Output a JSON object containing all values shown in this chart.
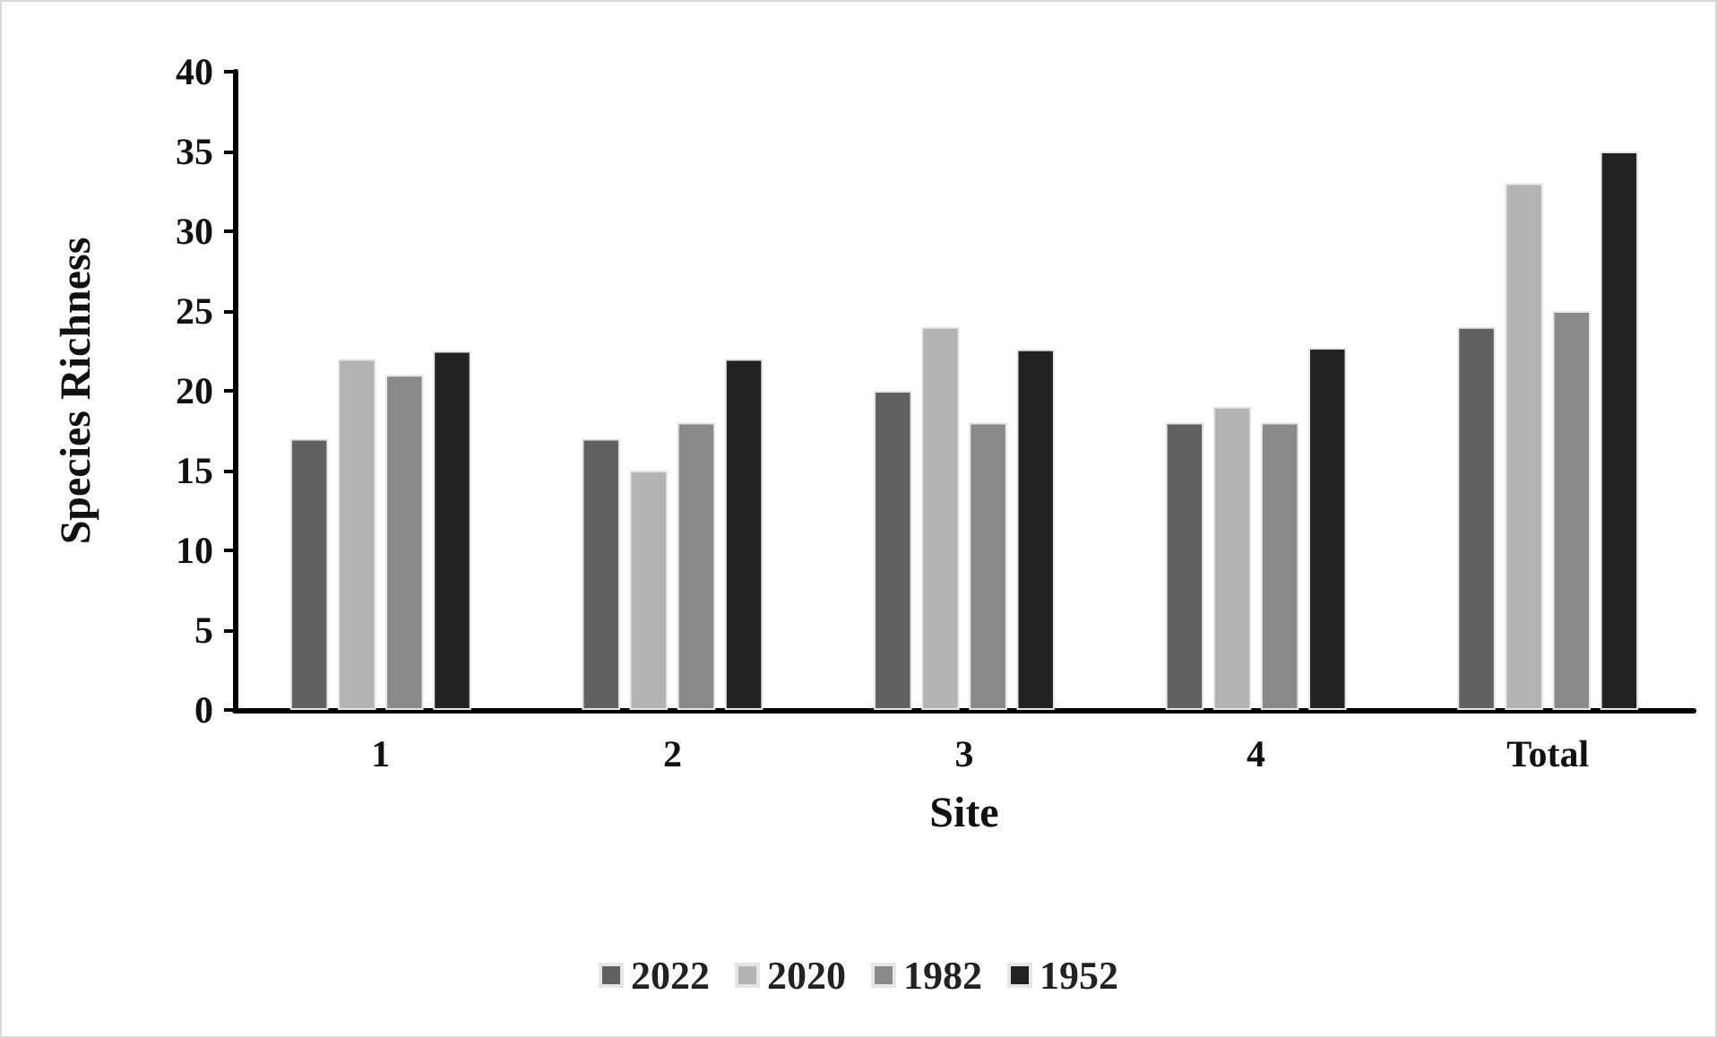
{
  "chart_data": {
    "type": "bar",
    "xlabel": "Site",
    "ylabel": "Species Richness",
    "categories": [
      "1",
      "2",
      "3",
      "4",
      "Total"
    ],
    "series": [
      {
        "name": "2022",
        "color": "#616161",
        "values": [
          17,
          17,
          20,
          18,
          24
        ]
      },
      {
        "name": "2020",
        "color": "#b3b3b3",
        "values": [
          22,
          15,
          24,
          19,
          33
        ]
      },
      {
        "name": "1982",
        "color": "#898989",
        "values": [
          21,
          18,
          18,
          18,
          25
        ]
      },
      {
        "name": "1952",
        "color": "#222222",
        "values": [
          22.5,
          22,
          22.6,
          22.7,
          35
        ]
      }
    ],
    "ylim": [
      0,
      40
    ],
    "yticks": [
      0,
      5,
      10,
      15,
      20,
      25,
      30,
      35,
      40
    ],
    "grid": false,
    "legend": "bottom"
  }
}
